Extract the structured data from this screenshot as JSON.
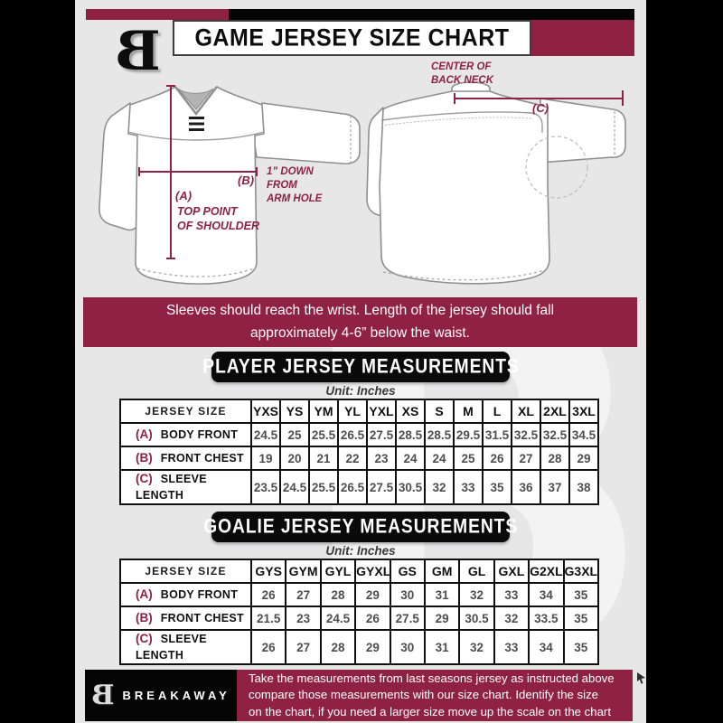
{
  "colors": {
    "maroon": "#8E2144",
    "black": "#000000",
    "background": "#E7E7E8"
  },
  "header": {
    "title": "GAME JERSEY SIZE CHART"
  },
  "diagrams": {
    "front": {
      "a_key": "(A)",
      "a_text": "TOP POINT\nOF SHOULDER",
      "b_key": "(B)",
      "b_text": "1” DOWN\nFROM\nARM HOLE"
    },
    "back": {
      "c_key": "(C)",
      "c_text": "CENTER OF\nBACK NECK"
    }
  },
  "notice": "Sleeves should reach the wrist. Length of the jersey should fall\napproximately 4-6” below the waist.",
  "player_table": {
    "title": "PLAYER JERSEY MEASUREMENTS",
    "unit": "Unit: Inches",
    "corner_label": "JERSEY SIZE",
    "sizes": [
      "YXS",
      "YS",
      "YM",
      "YL",
      "YXL",
      "XS",
      "S",
      "M",
      "L",
      "XL",
      "2XL",
      "3XL"
    ],
    "rows": [
      {
        "key": "(A)",
        "label": "BODY FRONT",
        "values": [
          "24.5",
          "25",
          "25.5",
          "26.5",
          "27.5",
          "28.5",
          "28.5",
          "29.5",
          "31.5",
          "32.5",
          "32.5",
          "34.5"
        ]
      },
      {
        "key": "(B)",
        "label": "FRONT CHEST",
        "values": [
          "19",
          "20",
          "21",
          "22",
          "23",
          "24",
          "24",
          "25",
          "26",
          "27",
          "28",
          "29"
        ]
      },
      {
        "key": "(C)",
        "label": "SLEEVE LENGTH",
        "values": [
          "23.5",
          "24.5",
          "25.5",
          "26.5",
          "27.5",
          "30.5",
          "32",
          "33",
          "35",
          "36",
          "37",
          "38"
        ]
      }
    ]
  },
  "goalie_table": {
    "title": "GOALIE JERSEY MEASUREMENTS",
    "unit": "Unit: Inches",
    "corner_label": "JERSEY SIZE",
    "sizes": [
      "GYS",
      "GYM",
      "GYL",
      "GYXL",
      "GS",
      "GM",
      "GL",
      "GXL",
      "G2XL",
      "G3XL"
    ],
    "rows": [
      {
        "key": "(A)",
        "label": "BODY FRONT",
        "values": [
          "26",
          "27",
          "28",
          "29",
          "30",
          "31",
          "32",
          "33",
          "34",
          "35"
        ]
      },
      {
        "key": "(B)",
        "label": "FRONT CHEST",
        "values": [
          "21.5",
          "23",
          "24.5",
          "26",
          "27.5",
          "29",
          "30.5",
          "32",
          "33.5",
          "35"
        ]
      },
      {
        "key": "(C)",
        "label": "SLEEVE LENGTH",
        "values": [
          "26",
          "27",
          "28",
          "29",
          "30",
          "31",
          "32",
          "33",
          "34",
          "35"
        ]
      }
    ]
  },
  "footer": {
    "brand": "BREAKAWAY",
    "text": "Take the measurements from last seasons jersey as instructed above\ncompare those measurements  with our size chart. Identify the size\non the chart, if you need a larger size move up the scale on the chart"
  },
  "watermark": "B"
}
